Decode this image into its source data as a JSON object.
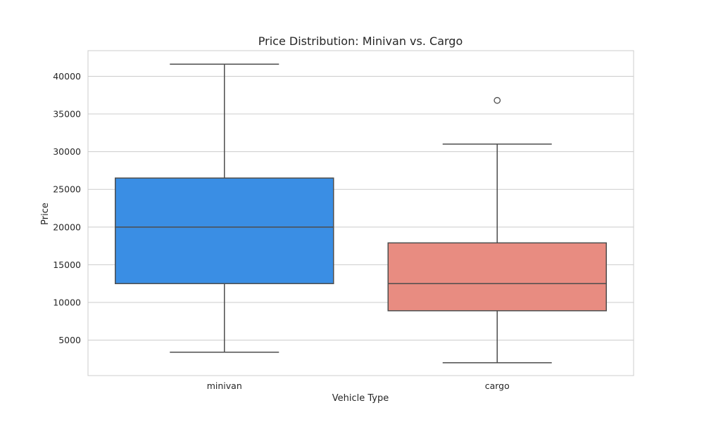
{
  "chart_data": {
    "type": "box",
    "title": "Price Distribution: Minivan vs. Cargo",
    "xlabel": "Vehicle Type",
    "ylabel": "Price",
    "categories": [
      "minivan",
      "cargo"
    ],
    "ylim": [
      300,
      43400
    ],
    "yticks": [
      5000,
      10000,
      15000,
      20000,
      25000,
      30000,
      35000,
      40000
    ],
    "grid": true,
    "boxes": [
      {
        "category": "minivan",
        "whisker_low": 3400,
        "q1": 12500,
        "median": 20000,
        "q3": 26500,
        "whisker_high": 41600,
        "outliers": [],
        "color": "#3a8ee4"
      },
      {
        "category": "cargo",
        "whisker_low": 2000,
        "q1": 8900,
        "median": 12500,
        "q3": 17900,
        "whisker_high": 31000,
        "outliers": [
          36800
        ],
        "color": "#e88c81"
      }
    ],
    "style": {
      "grid_color": "#cccccc",
      "line_color": "#4d4d4d",
      "frame_color": "#cccccc"
    }
  }
}
